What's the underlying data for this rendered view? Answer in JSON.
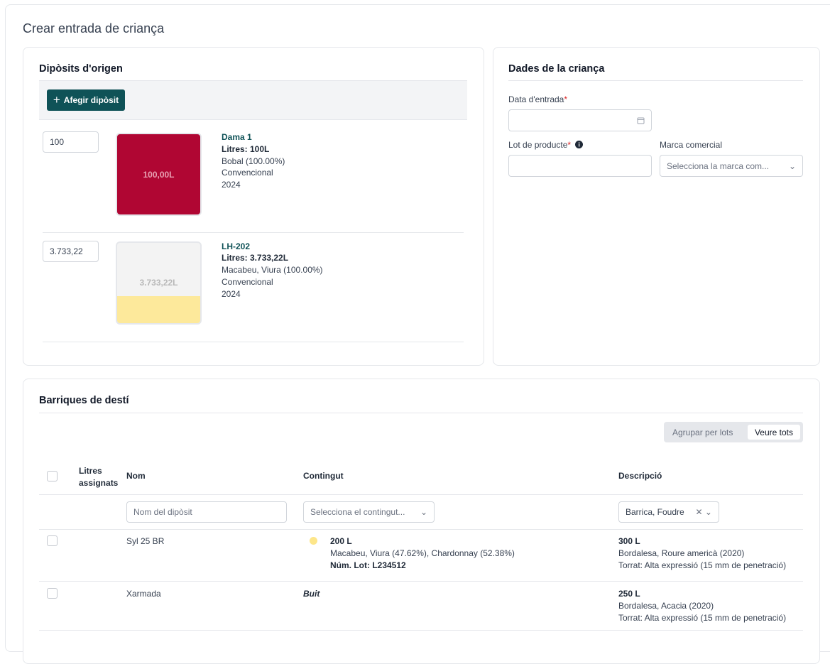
{
  "page": {
    "title": "Crear entrada de criança"
  },
  "origin": {
    "title": "Dipòsits d'origen",
    "add_button": "Afegir dipòsit",
    "tanks": [
      {
        "input": "100",
        "fill_label": "100,00L",
        "name": "Dama 1",
        "litres": "Litres: 100L",
        "variety": "Bobal (100.00%)",
        "kind": "Convencional",
        "year": "2024"
      },
      {
        "input": "3.733,22",
        "fill_label": "3.733,22L",
        "name": "LH-202",
        "litres": "Litres: 3.733,22L",
        "variety": "Macabeu, Viura (100.00%)",
        "kind": "Convencional",
        "year": "2024"
      }
    ]
  },
  "details": {
    "title": "Dades de la criança",
    "entry_date": {
      "label": "Data d'entrada",
      "required": "*"
    },
    "lot": {
      "label": "Lot de producte",
      "required": "*"
    },
    "brand": {
      "label": "Marca comercial",
      "placeholder": "Selecciona la marca com..."
    }
  },
  "barrels": {
    "title": "Barriques de destí",
    "toggle": [
      "Agrupar per lots",
      "Veure tots"
    ],
    "columns": [
      "Litres assignats",
      "Nom",
      "Contingut",
      "Descripció"
    ],
    "filters": {
      "name": "Nom del dipòsit",
      "content": "Selecciona el contingut...",
      "description": "Barrica, Foudre"
    },
    "rows": [
      {
        "name": "Syl 25 BR",
        "content": [
          "200 L",
          "Macabeu, Viura (47.62%), Chardonnay (52.38%)",
          "Núm. Lot: L234512"
        ],
        "description": [
          "300 L",
          "Bordalesa, Roure americà (2020)",
          "Torrat: Alta expressió (15 mm de penetració)"
        ]
      },
      {
        "name": "Xarmada",
        "content": [
          "Buit"
        ],
        "description": [
          "250 L",
          "Bordalesa, Acacia (2020)",
          "Torrat: Alta expressió (15 mm de penetració)"
        ]
      }
    ]
  }
}
